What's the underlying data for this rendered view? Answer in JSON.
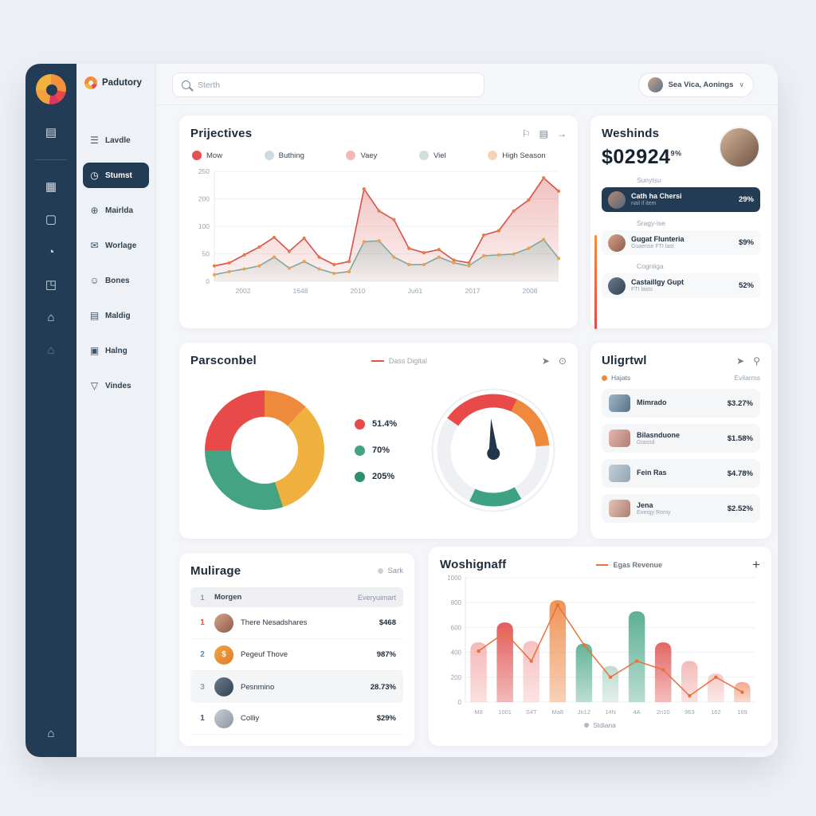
{
  "app": {
    "logo_text": "Padutory",
    "search_placeholder": "Sterth",
    "user_menu": "Sea Vica, Aonings"
  },
  "icons": {
    "menu": "☰",
    "clock": "◷",
    "globe": "⊕",
    "mail": "✉",
    "user": "☺",
    "box": "▤",
    "image": "▣",
    "filter": "▽",
    "doc": "▤",
    "grid": "▦",
    "file": "▢",
    "chat": "◔",
    "external": "◳",
    "home": "⌂",
    "share": "➤",
    "report": "▤",
    "arrow": "→",
    "flag": "⚐",
    "target": "⊙",
    "bulb": "⚲",
    "plus": "+",
    "chevron": "∨"
  },
  "sidebar": {
    "items": [
      {
        "label": "Lavdle"
      },
      {
        "label": "Stumst"
      },
      {
        "label": "Mairlda"
      },
      {
        "label": "Worlage"
      },
      {
        "label": "Bones"
      },
      {
        "label": "Maldig"
      },
      {
        "label": "Halng"
      },
      {
        "label": "Vindes"
      }
    ]
  },
  "cards": {
    "projectives": {
      "title": "Prijectives",
      "legend": [
        {
          "label": "Mow",
          "color": "#e8504f"
        },
        {
          "label": "Buthing",
          "color": "#ccdbe0"
        },
        {
          "label": "Vaey",
          "color": "#f3b8b4"
        },
        {
          "label": "Viel",
          "color": "#cfe0da"
        },
        {
          "label": "High Season",
          "color": "#f6d4b3"
        }
      ]
    },
    "weshinds": {
      "title": "Weshinds",
      "amount": "$02924",
      "amount_sup": "9%",
      "sections": [
        {
          "label": "Sunytsu",
          "name": "Cath ha Chersi",
          "sub": "nail if item",
          "value": "29%"
        },
        {
          "label": "Sragy-ise",
          "name": "Gugat Flunteria",
          "sub": "Guaense FTI last",
          "value": "$9%"
        },
        {
          "label": "Cogniiga",
          "name": "Castaillgy Gupt",
          "sub": "FTI lasts",
          "value": "52%"
        }
      ]
    },
    "parsconbel": {
      "title": "Parsconbel",
      "legend_label": "Dass Digital",
      "donut_legend": [
        {
          "label": "51.4%",
          "color": "#e84a4a"
        },
        {
          "label": "70%",
          "color": "#43a383"
        },
        {
          "label": "205%",
          "color": "#2e8f72"
        }
      ]
    },
    "uligrtwl": {
      "title": "Uligrtwl",
      "filter_label": "Hajats",
      "sort_label": "Evilarms",
      "rows": [
        {
          "name": "Mimrado",
          "sub": "",
          "value": "$3.27%"
        },
        {
          "name": "Bilasnduone",
          "sub": "Grassd",
          "value": "$1.58%"
        },
        {
          "name": "Fein Ras",
          "sub": "",
          "value": "$4.78%"
        },
        {
          "name": "Jena",
          "sub": "Energy Romy",
          "value": "$2.52%"
        }
      ]
    },
    "mulirage": {
      "title": "Mulirage",
      "badge": "Sark",
      "header": {
        "rank": "1",
        "name": "Morgen",
        "value": "Everyuimart"
      },
      "rows": [
        {
          "rank": "1",
          "name": "There Nesadshares",
          "value": "$468",
          "rank_color": "#d9534f"
        },
        {
          "rank": "2",
          "name": "Pegeuf Thove",
          "value": "987%",
          "rank_color": "#4a90c4"
        },
        {
          "rank": "3",
          "name": "Pesnmino",
          "value": "28.73%",
          "rank_color": "#8fa3b5"
        },
        {
          "rank": "1",
          "name": "Colliy",
          "value": "$29%",
          "rank_color": "#44566b"
        }
      ],
      "coin_glyph": "$"
    },
    "woshignaff": {
      "title": "Woshignaff",
      "legend_label": "Egas Revenue",
      "caption": "Stdiana"
    }
  },
  "chart_data": [
    {
      "id": "chart-projectives",
      "type": "area",
      "title": "Prijectives",
      "x_labels": [
        "2002",
        "1648",
        "2010",
        "Ju61",
        "2017",
        "2008"
      ],
      "y_ticks": [
        "250",
        "200",
        "100",
        "50",
        "0"
      ],
      "ylim": [
        0,
        250
      ],
      "grid": true,
      "legend_position": "top",
      "series": [
        {
          "name": "Mow",
          "color": "#d6514d",
          "marker": "#e87b3e",
          "values": [
            35,
            42,
            60,
            78,
            100,
            68,
            98,
            55,
            38,
            45,
            210,
            160,
            140,
            75,
            65,
            72,
            48,
            42,
            105,
            115,
            160,
            185,
            235,
            205
          ]
        },
        {
          "name": "Buthing",
          "color": "#7fa89f",
          "marker": "#f0a04a",
          "values": [
            15,
            22,
            28,
            35,
            55,
            30,
            45,
            28,
            18,
            22,
            90,
            92,
            55,
            38,
            38,
            55,
            42,
            35,
            58,
            60,
            62,
            75,
            95,
            52
          ]
        }
      ]
    },
    {
      "id": "donut-parsconbel",
      "type": "pie",
      "slices": [
        {
          "value": 12,
          "color": "#ef8a3c"
        },
        {
          "value": 33,
          "color": "#f0b13e"
        },
        {
          "value": 30,
          "color": "#43a383"
        },
        {
          "value": 25,
          "color": "#e84a4a"
        }
      ],
      "legend": [
        "51.4%",
        "70%",
        "205%"
      ]
    },
    {
      "id": "gauge-parsconbel",
      "type": "gauge",
      "segments": [
        {
          "from": -55,
          "to": 25,
          "color": "#e84a4a"
        },
        {
          "from": 25,
          "to": 85,
          "color": "#ef8a3c"
        },
        {
          "from": 150,
          "to": 205,
          "color": "#3fa183"
        }
      ],
      "needle_angle": -4
    },
    {
      "id": "chart-woshignaff",
      "type": "bar",
      "title": "Woshignaff",
      "categories": [
        "M8",
        "1001",
        "S4T",
        "Ma8",
        "Jn12",
        "14N",
        "4A",
        "2n10",
        "963",
        "162",
        "169"
      ],
      "values": [
        480,
        640,
        490,
        820,
        470,
        290,
        730,
        480,
        330,
        230,
        160
      ],
      "bar_colors": [
        "#f3b3b1",
        "#e0504f",
        "#f4bcba",
        "#ee8b4a",
        "#57ad8f",
        "#b8d8cd",
        "#4fa98b",
        "#e05a58",
        "#f2b5b3",
        "#f5c6c3",
        "#f0a287"
      ],
      "line": {
        "name": "Egas Revenue",
        "color": "#e8713a",
        "values": [
          410,
          560,
          330,
          780,
          460,
          200,
          330,
          260,
          50,
          200,
          80
        ]
      },
      "y_ticks": [
        "1000",
        "800",
        "600",
        "400",
        "200",
        "0"
      ],
      "ylim": [
        0,
        1000
      ],
      "grid": true
    }
  ]
}
